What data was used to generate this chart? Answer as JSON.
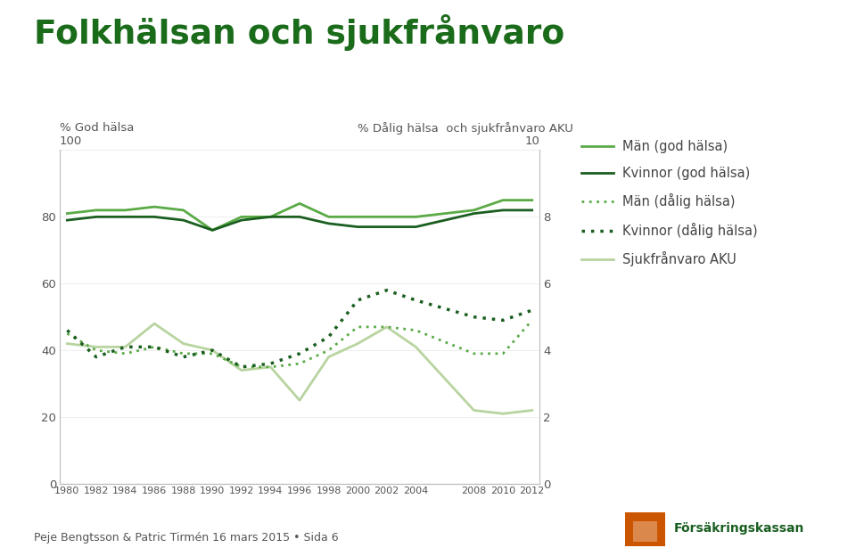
{
  "title": "Folkhälsan och sjukfrånvaro",
  "title_color": "#1a6b1a",
  "left_ylabel": "% God hälsa",
  "right_ylabel": "% Dålig hälsa  och sjukfrånvaro AKU",
  "years": [
    1980,
    1982,
    1984,
    1986,
    1988,
    1990,
    1992,
    1994,
    1996,
    1998,
    2000,
    2002,
    2004,
    2008,
    2010,
    2012
  ],
  "man_god": [
    81,
    82,
    82,
    83,
    82,
    76,
    80,
    80,
    84,
    80,
    80,
    80,
    80,
    82,
    85,
    85
  ],
  "kvinna_god": [
    79,
    80,
    80,
    80,
    79,
    76,
    79,
    80,
    80,
    78,
    77,
    77,
    77,
    81,
    82,
    82
  ],
  "man_dalig": [
    45,
    40,
    39,
    41,
    39,
    39,
    35,
    35,
    36,
    40,
    47,
    47,
    46,
    39,
    39,
    49
  ],
  "kvinna_dalig": [
    46,
    38,
    41,
    41,
    38,
    40,
    35,
    36,
    39,
    44,
    55,
    58,
    55,
    50,
    49,
    52
  ],
  "sjukfranvaro": [
    42,
    41,
    41,
    48,
    42,
    40,
    34,
    35,
    25,
    38,
    42,
    47,
    41,
    22,
    21,
    22
  ],
  "color_man_god": "#5aaa46",
  "color_kvinna_god": "#1a5e20",
  "color_man_dalig": "#5aaa46",
  "color_kvinna_dalig": "#1a5e20",
  "color_sjukfranvaro": "#b8d4a0",
  "left_ylim": [
    0,
    100
  ],
  "right_ylim": [
    0,
    10
  ],
  "footer": "Peje Bengtsson & Patric Tirmén 16 mars 2015 • Sida 6",
  "bg_color": "#ffffff",
  "legend_labels": [
    "Män (god hälsa)",
    "Kvinnor (god hälsa)",
    "Män (dålig hälsa)",
    "Kvinnor (dålig hälsa)",
    "Sjukfrånvaro AKU"
  ],
  "logo_color": "#cc5500",
  "logo_text_color": "#1a5e20"
}
